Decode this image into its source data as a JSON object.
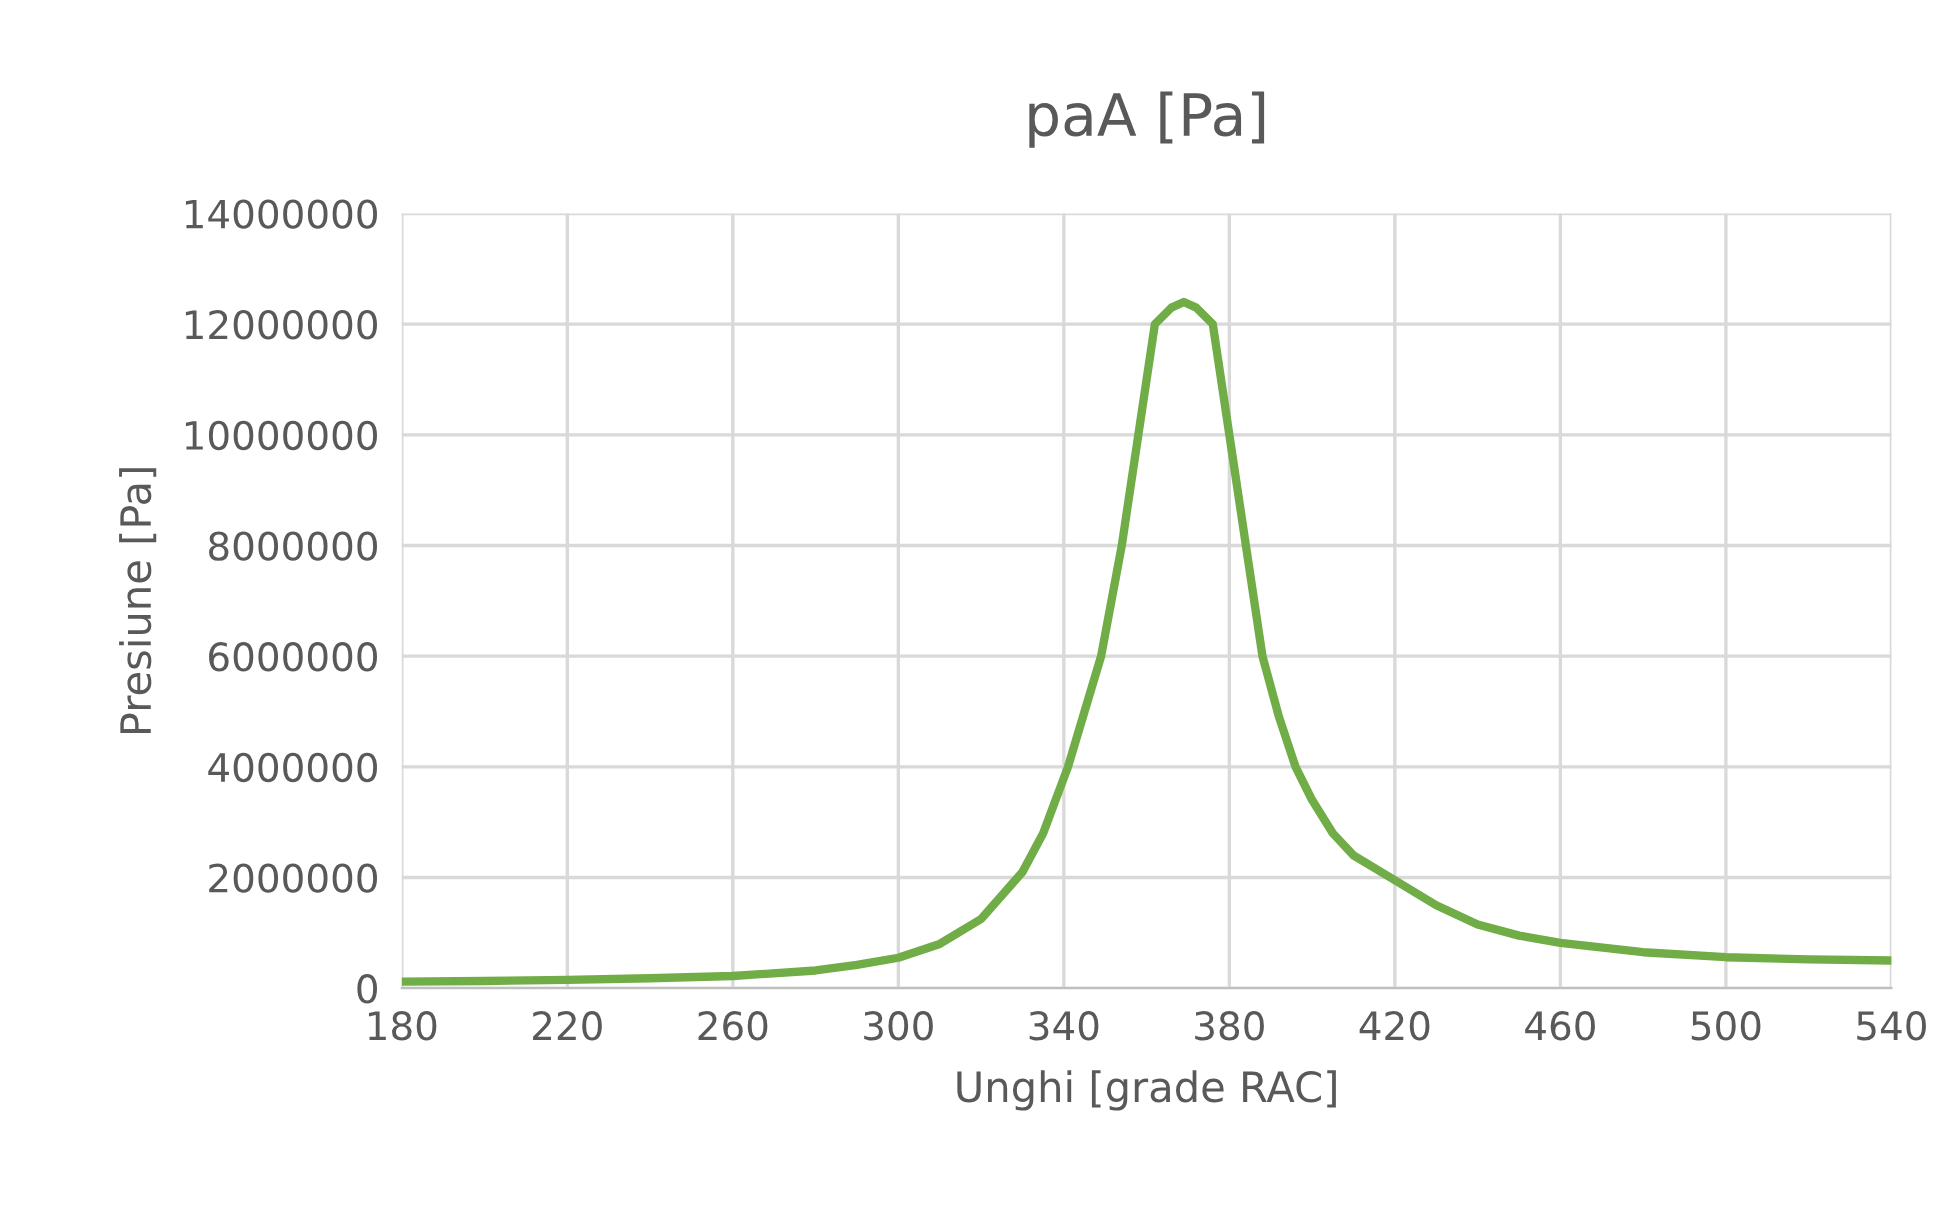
{
  "chart_data": {
    "type": "line",
    "title": "paA [Pa]",
    "xlabel": "Unghi [grade RAC]",
    "ylabel": "Presiune [Pa]",
    "x": [
      180,
      200,
      220,
      240,
      260,
      280,
      290,
      300,
      310,
      320,
      330,
      335,
      341,
      345,
      349,
      354,
      358,
      362,
      366,
      369,
      372,
      376,
      380,
      384,
      388,
      392,
      396,
      400,
      405,
      410,
      420,
      430,
      440,
      450,
      460,
      480,
      500,
      520,
      540
    ],
    "series": [
      {
        "color": "#70ad47",
        "values": [
          120000,
          130000,
          150000,
          180000,
          220000,
          320000,
          420000,
          550000,
          800000,
          1250000,
          2100000,
          2800000,
          4000000,
          5000000,
          6000000,
          8000000,
          10000000,
          12000000,
          12300000,
          12400000,
          12300000,
          12000000,
          10000000,
          8000000,
          6000000,
          4900000,
          4000000,
          3400000,
          2800000,
          2400000,
          1950000,
          1500000,
          1150000,
          950000,
          820000,
          650000,
          560000,
          520000,
          500000
        ]
      }
    ],
    "xlim": [
      180,
      540
    ],
    "xticks": [
      180,
      220,
      260,
      300,
      340,
      380,
      420,
      460,
      500,
      540
    ],
    "ylim": [
      0,
      14000000
    ],
    "yticks": [
      0,
      2000000,
      4000000,
      6000000,
      8000000,
      10000000,
      12000000,
      14000000
    ],
    "grid": true,
    "legend": false,
    "marker": "none",
    "line_style": "solid"
  }
}
